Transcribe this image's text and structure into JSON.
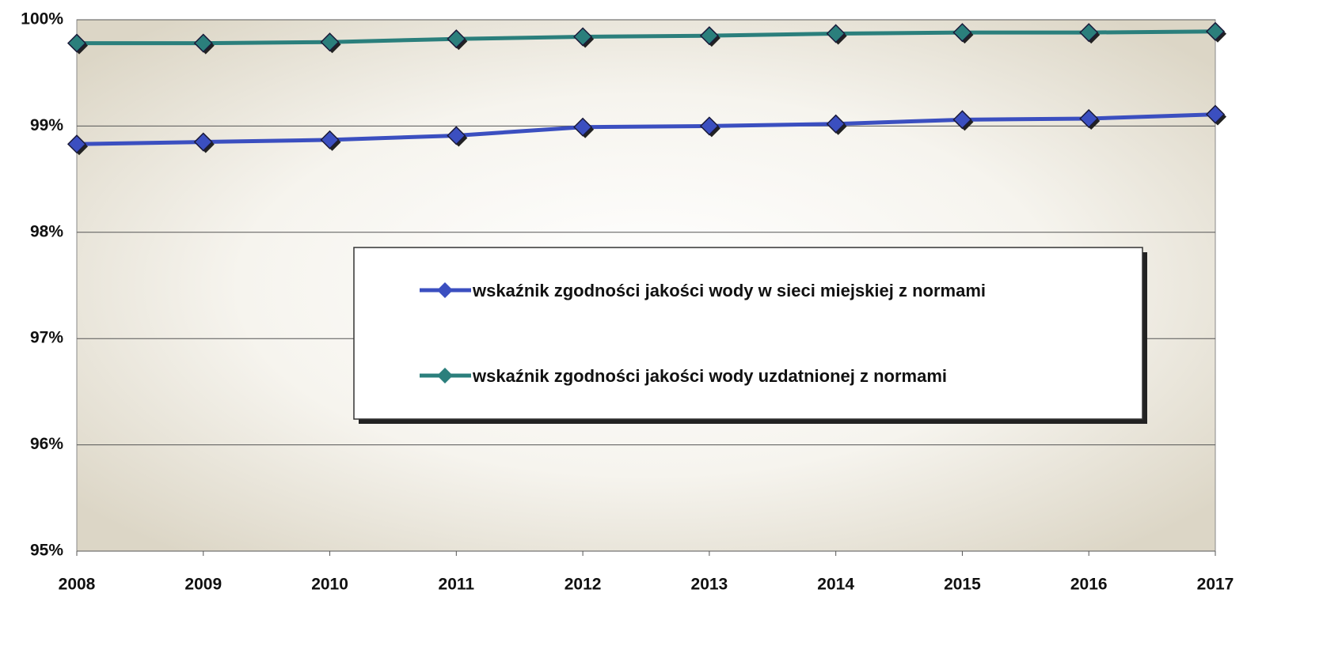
{
  "chart_data": {
    "type": "line",
    "categories": [
      "2008",
      "2009",
      "2010",
      "2011",
      "2012",
      "2013",
      "2014",
      "2015",
      "2016",
      "2017"
    ],
    "series": [
      {
        "name": "wskaźnik zgodności jakości wody w sieci miejskiej z normami",
        "color": "#3b4fc0",
        "values": [
          98.83,
          98.85,
          98.87,
          98.91,
          98.99,
          99.0,
          99.02,
          99.06,
          99.07,
          99.11
        ]
      },
      {
        "name": "wskaźnik zgodności jakości wody uzdatnionej z normami",
        "color": "#2b7f7c",
        "values": [
          99.78,
          99.78,
          99.79,
          99.82,
          99.84,
          99.85,
          99.87,
          99.88,
          99.88,
          99.89
        ]
      }
    ],
    "ylim": [
      95,
      100
    ],
    "yticks": [
      {
        "value": 95,
        "label": "95%"
      },
      {
        "value": 96,
        "label": "96%"
      },
      {
        "value": 97,
        "label": "97%"
      },
      {
        "value": 98,
        "label": "98%"
      },
      {
        "value": 99,
        "label": "99%"
      },
      {
        "value": 100,
        "label": "100%"
      }
    ],
    "grid": true
  }
}
